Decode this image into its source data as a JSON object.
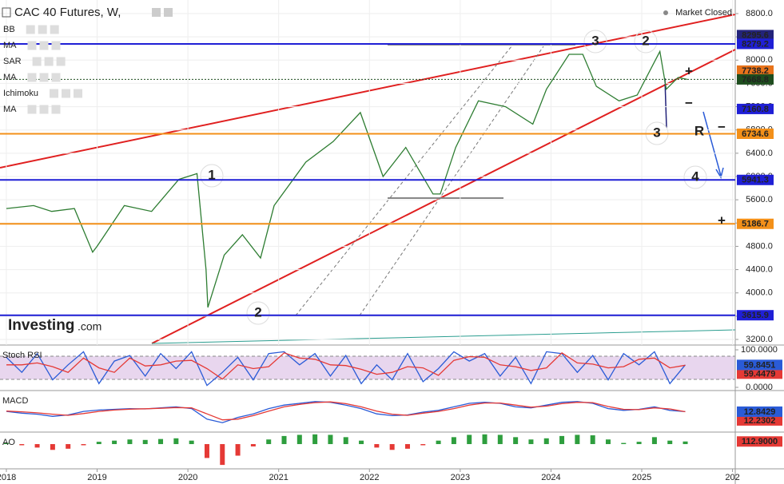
{
  "chart_data": [
    {
      "type": "line",
      "title": "CAC 40 Futures, W,",
      "status": "Market Closed",
      "indicators": [
        "BB",
        "MA",
        "SAR",
        "MA",
        "Ichimoku",
        "MA"
      ],
      "logo": [
        "Investing",
        ".com"
      ],
      "grid": true,
      "color": "#2e7d32",
      "xlim": [
        2017.93,
        2026.03
      ],
      "xticks": [
        2018,
        2019,
        2020,
        2021,
        2022,
        2023,
        2024,
        2025,
        {
          "value": 2026,
          "label": "202"
        }
      ],
      "ylim": [
        3200,
        8800
      ],
      "yticks": [
        {
          "value": 3200,
          "label": "3200.0"
        },
        {
          "value": 3600,
          "label": "3600.0"
        },
        {
          "value": 4000,
          "label": "4000.0"
        },
        {
          "value": 4400,
          "label": "4400.0"
        },
        {
          "value": 4800,
          "label": "4800.0"
        },
        {
          "value": 5200,
          "label": "5200.0"
        },
        {
          "value": 5600,
          "label": "5600.0"
        },
        {
          "value": 6000,
          "label": "6000.0"
        },
        {
          "value": 6400,
          "label": "6400.0"
        },
        {
          "value": 6800,
          "label": "6800.0"
        },
        {
          "value": 7200,
          "label": "7200.0"
        },
        {
          "value": 7600,
          "label": "7600.0"
        },
        {
          "value": 8000,
          "label": "8000.0"
        },
        {
          "value": 8400,
          "label": "8400.0"
        },
        {
          "value": 8800,
          "label": "8800.0"
        }
      ],
      "x": [
        2018.0,
        2018.3,
        2018.5,
        2018.75,
        2018.95,
        2019.0,
        2019.3,
        2019.6,
        2019.9,
        2020.1,
        2020.2,
        2020.22,
        2020.4,
        2020.6,
        2020.8,
        2020.95,
        2021.3,
        2021.6,
        2021.9,
        2022.15,
        2022.4,
        2022.7,
        2022.78,
        2022.95,
        2023.2,
        2023.5,
        2023.8,
        2023.95,
        2024.2,
        2024.35,
        2024.5,
        2024.75,
        2024.95,
        2025.2,
        2025.27,
        2025.4,
        2025.5
      ],
      "values": [
        5450,
        5500,
        5400,
        5450,
        4700,
        4800,
        5500,
        5400,
        5950,
        6050,
        4400,
        3750,
        4650,
        5000,
        4600,
        5500,
        6250,
        6600,
        7100,
        6000,
        6500,
        5700,
        5700,
        6500,
        7300,
        7200,
        6900,
        7500,
        8100,
        8100,
        7550,
        7300,
        7400,
        8150,
        7500,
        7700,
        7668.8
      ],
      "tags": [
        {
          "value": 8279.2,
          "color": "#1f1fd6",
          "line": "solid"
        },
        {
          "value": 8295.6,
          "color": "#23237a",
          "line": "none"
        },
        {
          "value": 7668.8,
          "color": "#1e4d1e",
          "line": "dotted"
        },
        {
          "value": 7738.2,
          "color": "#e8731a",
          "line": "none"
        },
        {
          "value": 7160.8,
          "color": "#1f1fd6",
          "line": "none"
        },
        {
          "value": 6734.6,
          "color": "#f39019",
          "line": "solid"
        },
        {
          "value": 5941.3,
          "color": "#1f1fd6",
          "line": "solid"
        },
        {
          "value": 5186.7,
          "color": "#f39019",
          "line": "solid"
        },
        {
          "value": 3615.9,
          "color": "#1f1fd6",
          "line": "solid"
        }
      ],
      "annotations": [
        "1",
        "2",
        "3",
        "2",
        "3",
        "R",
        "4",
        "+",
        "−",
        "−",
        "+"
      ]
    },
    {
      "type": "line",
      "title": "Stoch RSI",
      "ylim": [
        0,
        100
      ],
      "yticks": [
        {
          "value": 100,
          "label": "100.0000"
        },
        {
          "value": 0,
          "label": "0.0000"
        }
      ],
      "x": [
        2018,
        2018.17,
        2018.34,
        2018.51,
        2018.68,
        2018.85,
        2019.02,
        2019.19,
        2019.36,
        2019.53,
        2019.7,
        2019.87,
        2020.04,
        2020.21,
        2020.38,
        2020.55,
        2020.72,
        2020.89,
        2021.06,
        2021.23,
        2021.4,
        2021.57,
        2021.74,
        2021.91,
        2022.08,
        2022.25,
        2022.42,
        2022.59,
        2022.76,
        2022.93,
        2023.1,
        2023.27,
        2023.44,
        2023.61,
        2023.78,
        2023.95,
        2024.12,
        2024.29,
        2024.46,
        2024.63,
        2024.8,
        2024.97,
        2025.14,
        2025.31,
        2025.48
      ],
      "series": [
        {
          "color": "#2a5bd7",
          "values": [
            80,
            40,
            90,
            20,
            60,
            95,
            10,
            70,
            85,
            30,
            90,
            50,
            95,
            5,
            40,
            80,
            20,
            90,
            95,
            60,
            90,
            30,
            85,
            10,
            60,
            20,
            90,
            15,
            50,
            95,
            70,
            90,
            30,
            80,
            10,
            95,
            90,
            40,
            85,
            20,
            90,
            60,
            95,
            10,
            60
          ]
        },
        {
          "color": "#e53935",
          "values": [
            60,
            60,
            65,
            55,
            40,
            78,
            52,
            40,
            78,
            57,
            60,
            70,
            72,
            50,
            22,
            60,
            50,
            55,
            92,
            78,
            75,
            60,
            58,
            48,
            35,
            40,
            55,
            52,
            32,
            72,
            82,
            80,
            60,
            55,
            45,
            52,
            92,
            65,
            62,
            52,
            55,
            75,
            78,
            52,
            59
          ]
        }
      ],
      "tags": [
        {
          "value": 59.8451,
          "color": "#2a5bd7"
        },
        {
          "value": 59.4479,
          "color": "#e53935"
        }
      ]
    },
    {
      "type": "line",
      "title": "MACD",
      "ylim": [
        -500,
        500
      ],
      "x": [
        2018,
        2018.17,
        2018.34,
        2018.51,
        2018.68,
        2018.85,
        2019.02,
        2019.19,
        2019.36,
        2019.53,
        2019.7,
        2019.87,
        2020.04,
        2020.21,
        2020.38,
        2020.55,
        2020.72,
        2020.89,
        2021.06,
        2021.23,
        2021.4,
        2021.57,
        2021.74,
        2021.91,
        2022.08,
        2022.25,
        2022.42,
        2022.59,
        2022.76,
        2022.93,
        2023.1,
        2023.27,
        2023.44,
        2023.61,
        2023.78,
        2023.95,
        2024.12,
        2024.29,
        2024.46,
        2024.63,
        2024.8,
        2024.97,
        2025.14,
        2025.31,
        2025.48
      ],
      "series": [
        {
          "color": "#2a5bd7",
          "values": [
            20,
            -30,
            -60,
            -120,
            -80,
            20,
            60,
            80,
            100,
            90,
            120,
            150,
            100,
            -200,
            -300,
            -150,
            -50,
            100,
            200,
            250,
            300,
            280,
            200,
            100,
            -50,
            -100,
            -80,
            0,
            50,
            150,
            250,
            280,
            250,
            150,
            120,
            200,
            280,
            300,
            250,
            100,
            50,
            80,
            150,
            50,
            13
          ]
        },
        {
          "color": "#e53935",
          "values": [
            30,
            10,
            -20,
            -60,
            -90,
            -40,
            20,
            60,
            85,
            95,
            110,
            130,
            120,
            -50,
            -220,
            -200,
            -100,
            30,
            150,
            220,
            270,
            290,
            240,
            150,
            30,
            -60,
            -90,
            -30,
            20,
            100,
            200,
            260,
            260,
            200,
            140,
            170,
            240,
            280,
            270,
            160,
            80,
            70,
            120,
            90,
            12
          ]
        }
      ],
      "tags": [
        {
          "value": 12.8429,
          "color": "#2a5bd7"
        },
        {
          "value": 12.2302,
          "color": "#e53935"
        }
      ]
    },
    {
      "type": "bar",
      "title": "AO",
      "ylim": [
        -1000,
        450
      ],
      "color": "#2e9e3e",
      "negative_color": "#e53935",
      "x": [
        2018,
        2018.17,
        2018.34,
        2018.51,
        2018.68,
        2018.85,
        2019.02,
        2019.19,
        2019.36,
        2019.53,
        2019.7,
        2019.87,
        2020.04,
        2020.21,
        2020.38,
        2020.55,
        2020.72,
        2020.89,
        2021.06,
        2021.23,
        2021.4,
        2021.57,
        2021.74,
        2021.91,
        2022.08,
        2022.25,
        2022.42,
        2022.59,
        2022.76,
        2022.93,
        2023.1,
        2023.27,
        2023.44,
        2023.61,
        2023.78,
        2023.95,
        2024.12,
        2024.29,
        2024.46,
        2024.63,
        2024.8,
        2024.97,
        2025.14,
        2025.31,
        2025.48
      ],
      "values": [
        50,
        -50,
        -150,
        -250,
        -200,
        -50,
        100,
        150,
        200,
        180,
        220,
        250,
        150,
        -600,
        -900,
        -500,
        -100,
        200,
        350,
        400,
        420,
        400,
        300,
        150,
        -150,
        -250,
        -200,
        -50,
        150,
        300,
        400,
        420,
        400,
        300,
        200,
        250,
        350,
        400,
        380,
        200,
        50,
        100,
        300,
        150,
        113
      ],
      "tags": [
        {
          "value": 112.9,
          "label": "112.9000",
          "color": "#e53935"
        }
      ]
    }
  ]
}
